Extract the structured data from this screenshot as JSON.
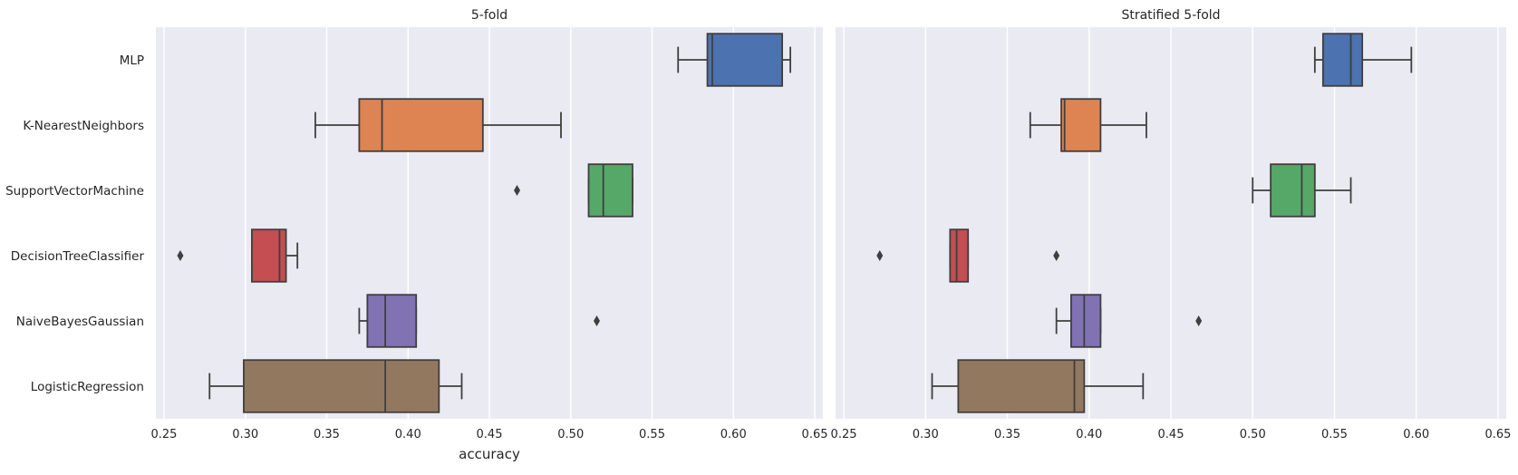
{
  "chart_data": [
    {
      "type": "box",
      "title": "5-fold",
      "xlabel": "accuracy",
      "ylabel": "",
      "xlim": [
        0.245,
        0.655
      ],
      "xticks": [
        0.25,
        0.3,
        0.35,
        0.4,
        0.45,
        0.5,
        0.55,
        0.6,
        0.65
      ],
      "xtick_labels": [
        "0.25",
        "0.30",
        "0.35",
        "0.40",
        "0.45",
        "0.50",
        "0.55",
        "0.60",
        "0.65"
      ],
      "grid": true,
      "categories": [
        "MLP",
        "K-NearestNeighbors",
        "SupportVectorMachine",
        "DecisionTreeClassifier",
        "NaiveBayesGaussian",
        "LogisticRegression"
      ],
      "series": [
        {
          "category": "MLP",
          "color": "#4c72b0",
          "whisker_low": 0.566,
          "q1": 0.584,
          "median": 0.587,
          "q3": 0.63,
          "whisker_high": 0.635,
          "outliers": []
        },
        {
          "category": "K-NearestNeighbors",
          "color": "#dd8452",
          "whisker_low": 0.343,
          "q1": 0.37,
          "median": 0.384,
          "q3": 0.446,
          "whisker_high": 0.494,
          "outliers": []
        },
        {
          "category": "SupportVectorMachine",
          "color": "#55a868",
          "whisker_low": 0.511,
          "q1": 0.511,
          "median": 0.52,
          "q3": 0.538,
          "whisker_high": 0.538,
          "outliers": [
            0.467
          ]
        },
        {
          "category": "DecisionTreeClassifier",
          "color": "#c44e52",
          "whisker_low": 0.304,
          "q1": 0.304,
          "median": 0.321,
          "q3": 0.325,
          "whisker_high": 0.332,
          "outliers": [
            0.26
          ]
        },
        {
          "category": "NaiveBayesGaussian",
          "color": "#8172b3",
          "whisker_low": 0.37,
          "q1": 0.375,
          "median": 0.386,
          "q3": 0.405,
          "whisker_high": 0.405,
          "outliers": [
            0.516
          ]
        },
        {
          "category": "LogisticRegression",
          "color": "#937860",
          "whisker_low": 0.278,
          "q1": 0.299,
          "median": 0.386,
          "q3": 0.419,
          "whisker_high": 0.433,
          "outliers": []
        }
      ]
    },
    {
      "type": "box",
      "title": "Stratified 5-fold",
      "xlabel": "",
      "ylabel": "",
      "xlim": [
        0.245,
        0.655
      ],
      "xticks": [
        0.25,
        0.3,
        0.35,
        0.4,
        0.45,
        0.5,
        0.55,
        0.6,
        0.65
      ],
      "xtick_labels": [
        "0.25",
        "0.30",
        "0.35",
        "0.40",
        "0.45",
        "0.50",
        "0.55",
        "0.60",
        "0.65"
      ],
      "grid": true,
      "categories": [
        "MLP",
        "K-NearestNeighbors",
        "SupportVectorMachine",
        "DecisionTreeClassifier",
        "NaiveBayesGaussian",
        "LogisticRegression"
      ],
      "series": [
        {
          "category": "MLP",
          "color": "#4c72b0",
          "whisker_low": 0.538,
          "q1": 0.543,
          "median": 0.56,
          "q3": 0.567,
          "whisker_high": 0.597,
          "outliers": []
        },
        {
          "category": "K-NearestNeighbors",
          "color": "#dd8452",
          "whisker_low": 0.364,
          "q1": 0.383,
          "median": 0.385,
          "q3": 0.407,
          "whisker_high": 0.435,
          "outliers": []
        },
        {
          "category": "SupportVectorMachine",
          "color": "#55a868",
          "whisker_low": 0.5,
          "q1": 0.511,
          "median": 0.53,
          "q3": 0.538,
          "whisker_high": 0.56,
          "outliers": []
        },
        {
          "category": "DecisionTreeClassifier",
          "color": "#c44e52",
          "whisker_low": 0.315,
          "q1": 0.315,
          "median": 0.319,
          "q3": 0.326,
          "whisker_high": 0.326,
          "outliers": [
            0.272,
            0.38
          ]
        },
        {
          "category": "NaiveBayesGaussian",
          "color": "#8172b3",
          "whisker_low": 0.38,
          "q1": 0.389,
          "median": 0.397,
          "q3": 0.407,
          "whisker_high": 0.407,
          "outliers": [
            0.467
          ]
        },
        {
          "category": "LogisticRegression",
          "color": "#937860",
          "whisker_low": 0.304,
          "q1": 0.32,
          "median": 0.391,
          "q3": 0.397,
          "whisker_high": 0.433,
          "outliers": []
        }
      ]
    }
  ]
}
